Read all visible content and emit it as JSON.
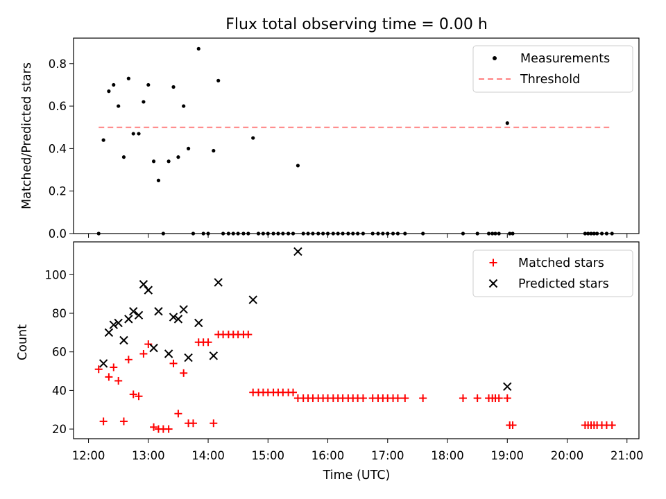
{
  "title": "Flux total observing time = 0.00 h",
  "xlabel": "Time (UTC)",
  "x_ticks": [
    "12:00",
    "13:00",
    "14:00",
    "15:00",
    "16:00",
    "17:00",
    "18:00",
    "19:00",
    "20:00",
    "21:00"
  ],
  "top": {
    "ylabel": "Matched/Predicted stars",
    "legend": {
      "measurements": "Measurements",
      "threshold": "Threshold"
    }
  },
  "bottom": {
    "ylabel": "Count",
    "legend": {
      "matched": "Matched stars",
      "predicted": "Predicted stars"
    }
  },
  "colors": {
    "measurement": "#000000",
    "threshold": "#ff7f7f",
    "matched": "#ff0000",
    "predicted": "#000000",
    "legend_border": "#cccccc"
  },
  "chart_data": [
    {
      "type": "scatter",
      "ylabel": "Matched/Predicted stars",
      "xlim": [
        11.75,
        21.2
      ],
      "ylim": [
        0,
        0.92
      ],
      "y_ticks": [
        0.0,
        0.2,
        0.4,
        0.6,
        0.8
      ],
      "series": [
        {
          "name": "Measurements",
          "x": [
            12.17,
            12.25,
            12.34,
            12.42,
            12.5,
            12.59,
            12.67,
            12.75,
            12.84,
            12.92,
            13.0,
            13.09,
            13.17,
            13.25,
            13.34,
            13.42,
            13.5,
            13.59,
            13.67,
            13.75,
            13.84,
            13.92,
            14.0,
            14.09,
            14.17,
            14.25,
            14.34,
            14.42,
            14.5,
            14.59,
            14.67,
            14.75,
            14.84,
            14.92,
            15.0,
            15.09,
            15.17,
            15.25,
            15.34,
            15.42,
            15.5,
            15.59,
            15.67,
            15.75,
            15.84,
            15.92,
            16.0,
            16.09,
            16.17,
            16.25,
            16.34,
            16.42,
            16.5,
            16.59,
            16.75,
            16.84,
            16.92,
            17.0,
            17.09,
            17.17,
            17.29,
            17.59,
            18.26,
            18.5,
            18.69,
            18.75,
            18.8,
            18.86,
            19.0,
            19.04,
            19.09,
            20.3,
            20.35,
            20.4,
            20.45,
            20.5,
            20.58,
            20.66,
            20.75
          ],
          "y": [
            0.0,
            0.44,
            0.67,
            0.7,
            0.6,
            0.36,
            0.73,
            0.47,
            0.47,
            0.62,
            0.7,
            0.34,
            0.25,
            0.0,
            0.34,
            0.69,
            0.36,
            0.6,
            0.4,
            0.0,
            0.87,
            0.0,
            0.0,
            0.39,
            0.72,
            0.0,
            0.0,
            0.0,
            0.0,
            0.0,
            0.0,
            0.45,
            0.0,
            0.0,
            0.0,
            0.0,
            0.0,
            0.0,
            0.0,
            0.0,
            0.32,
            0.0,
            0.0,
            0.0,
            0.0,
            0.0,
            0.0,
            0.0,
            0.0,
            0.0,
            0.0,
            0.0,
            0.0,
            0.0,
            0.0,
            0.0,
            0.0,
            0.0,
            0.0,
            0.0,
            0.0,
            0.0,
            0.0,
            0.0,
            0.0,
            0.0,
            0.0,
            0.0,
            0.52,
            0.0,
            0.0,
            0.0,
            0.0,
            0.0,
            0.0,
            0.0,
            0.0,
            0.0,
            0.0
          ]
        },
        {
          "name": "Threshold",
          "x": [
            12.17,
            20.75
          ],
          "y": [
            0.5,
            0.5
          ]
        }
      ]
    },
    {
      "type": "scatter",
      "ylabel": "Count",
      "xlim": [
        11.75,
        21.2
      ],
      "ylim": [
        15,
        117
      ],
      "y_ticks": [
        20,
        40,
        60,
        80,
        100
      ],
      "series": [
        {
          "name": "Matched stars",
          "x": [
            12.17,
            12.25,
            12.34,
            12.42,
            12.5,
            12.59,
            12.67,
            12.75,
            12.84,
            12.92,
            13.0,
            13.09,
            13.17,
            13.25,
            13.34,
            13.42,
            13.5,
            13.59,
            13.67,
            13.75,
            13.84,
            13.92,
            14.0,
            14.09,
            14.17,
            14.25,
            14.34,
            14.42,
            14.5,
            14.59,
            14.67,
            14.75,
            14.84,
            14.92,
            15.0,
            15.09,
            15.17,
            15.25,
            15.34,
            15.42,
            15.5,
            15.59,
            15.67,
            15.75,
            15.84,
            15.92,
            16.0,
            16.09,
            16.17,
            16.25,
            16.34,
            16.42,
            16.5,
            16.59,
            16.75,
            16.84,
            16.92,
            17.0,
            17.09,
            17.17,
            17.29,
            17.59,
            18.26,
            18.5,
            18.69,
            18.75,
            18.8,
            18.86,
            19.0,
            19.04,
            19.09,
            20.3,
            20.35,
            20.4,
            20.45,
            20.5,
            20.58,
            20.66,
            20.75
          ],
          "y": [
            51,
            24,
            47,
            52,
            45,
            24,
            56,
            38,
            37,
            59,
            64,
            21,
            20,
            20,
            20,
            54,
            28,
            49,
            23,
            23,
            65,
            65,
            65,
            23,
            69,
            69,
            69,
            69,
            69,
            69,
            69,
            39,
            39,
            39,
            39,
            39,
            39,
            39,
            39,
            39,
            36,
            36,
            36,
            36,
            36,
            36,
            36,
            36,
            36,
            36,
            36,
            36,
            36,
            36,
            36,
            36,
            36,
            36,
            36,
            36,
            36,
            36,
            36,
            36,
            36,
            36,
            36,
            36,
            36,
            22,
            22,
            22,
            22,
            22,
            22,
            22,
            22,
            22,
            22
          ]
        },
        {
          "name": "Predicted stars",
          "x": [
            12.25,
            12.34,
            12.42,
            12.5,
            12.59,
            12.67,
            12.75,
            12.84,
            12.92,
            13.0,
            13.09,
            13.17,
            13.34,
            13.42,
            13.5,
            13.59,
            13.67,
            13.84,
            14.09,
            14.17,
            14.75,
            15.5,
            19.0
          ],
          "y": [
            54,
            70,
            74,
            75,
            66,
            77,
            81,
            79,
            95,
            92,
            62,
            81,
            59,
            78,
            77,
            82,
            57,
            75,
            58,
            96,
            87,
            112,
            42
          ]
        }
      ]
    }
  ]
}
